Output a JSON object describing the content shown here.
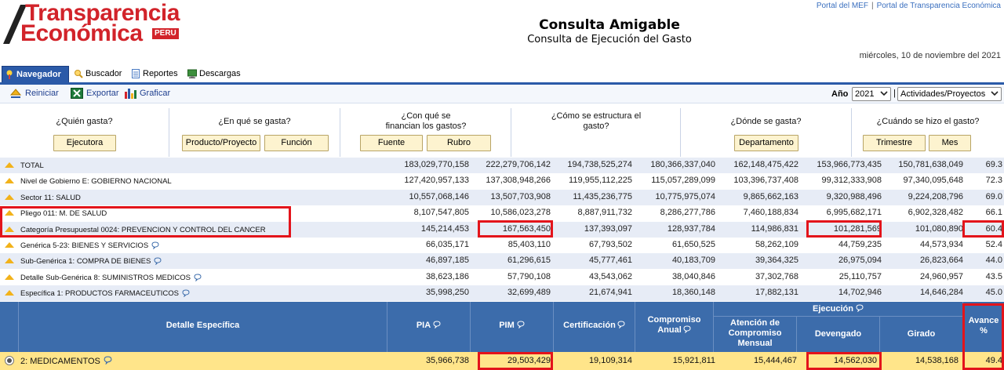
{
  "header": {
    "logo_line1": "Transparencia",
    "logo_line2": "Económica",
    "logo_badge": "PERU",
    "links": [
      "Portal del MEF",
      "Portal de Transparencia Económica"
    ],
    "link_separator": "|",
    "title": "Consulta Amigable",
    "subtitle": "Consulta de Ejecución del Gasto",
    "date": "miércoles, 10 de noviembre del 2021"
  },
  "tabs": [
    "Navegador",
    "Buscador",
    "Reportes",
    "Descargas"
  ],
  "toolbar": {
    "reset": "Reiniciar",
    "export": "Exportar",
    "chart": "Graficar",
    "year_label": "Año",
    "year_value": "2021",
    "mode_separator": "|",
    "mode_value": "Actividades/Proyectos"
  },
  "questions": [
    {
      "q": "¿Quién gasta?",
      "buttons": [
        "Ejecutora"
      ]
    },
    {
      "q": "¿En qué se gasta?",
      "buttons": [
        "Producto/Proyecto",
        "Función"
      ]
    },
    {
      "q": "¿Con qué se financian los gastos?",
      "buttons": [
        "Fuente",
        "Rubro"
      ]
    },
    {
      "q": "¿Cómo se estructura el gasto?",
      "buttons": []
    },
    {
      "q": "¿Dónde se gasta?",
      "buttons": [
        "Departamento"
      ]
    },
    {
      "q": "¿Cuándo se hizo el gasto?",
      "buttons": [
        "Trimestre",
        "Mes"
      ]
    }
  ],
  "rows": [
    {
      "label": "TOTAL",
      "hint": false,
      "v": [
        "183,029,770,158",
        "222,279,706,142",
        "194,738,525,274",
        "180,366,337,040",
        "162,148,475,422",
        "153,966,773,435",
        "150,781,638,049",
        "69.3"
      ]
    },
    {
      "label": "Nivel de Gobierno E: GOBIERNO NACIONAL",
      "hint": false,
      "v": [
        "127,420,957,133",
        "137,308,948,266",
        "119,955,112,225",
        "115,057,289,099",
        "103,396,737,408",
        "99,312,333,908",
        "97,340,095,648",
        "72.3"
      ]
    },
    {
      "label": "Sector 11: SALUD",
      "hint": false,
      "v": [
        "10,557,068,146",
        "13,507,703,908",
        "11,435,236,775",
        "10,775,975,074",
        "9,865,662,163",
        "9,320,988,496",
        "9,224,208,796",
        "69.0"
      ]
    },
    {
      "label": "Pliego 011: M. DE SALUD",
      "hint": false,
      "v": [
        "8,107,547,805",
        "10,586,023,278",
        "8,887,911,732",
        "8,286,277,786",
        "7,460,188,834",
        "6,995,682,171",
        "6,902,328,482",
        "66.1"
      ]
    },
    {
      "label": "Categoría Presupuestal 0024: PREVENCION Y CONTROL DEL CANCER",
      "hint": false,
      "v": [
        "145,214,453",
        "167,563,450",
        "137,393,097",
        "128,937,784",
        "114,986,831",
        "101,281,569",
        "101,080,890",
        "60.4"
      ]
    },
    {
      "label": "Genérica 5-23: BIENES Y SERVICIOS",
      "hint": true,
      "v": [
        "66,035,171",
        "85,403,110",
        "67,793,502",
        "61,650,525",
        "58,262,109",
        "44,759,235",
        "44,573,934",
        "52.4"
      ]
    },
    {
      "label": "Sub-Genérica 1: COMPRA DE BIENES",
      "hint": true,
      "v": [
        "46,897,185",
        "61,296,615",
        "45,777,461",
        "40,183,709",
        "39,364,325",
        "26,975,094",
        "26,823,664",
        "44.0"
      ]
    },
    {
      "label": "Detalle Sub-Genérica 8: SUMINISTROS MEDICOS",
      "hint": true,
      "v": [
        "38,623,186",
        "57,790,108",
        "43,543,062",
        "38,040,846",
        "37,302,768",
        "25,110,757",
        "24,960,957",
        "43.5"
      ]
    },
    {
      "label": "Específica 1: PRODUCTOS FARMACEUTICOS",
      "hint": true,
      "v": [
        "35,998,250",
        "32,699,489",
        "21,674,941",
        "18,360,148",
        "17,882,131",
        "14,702,946",
        "14,646,284",
        "45.0"
      ]
    }
  ],
  "detail_header": {
    "detail": "Detalle Específica",
    "pia": "PIA",
    "pim": "PIM",
    "cert": "Certificación",
    "comp_line1": "Compromiso",
    "comp_line2": "Anual",
    "ejecucion": "Ejecución",
    "aten_line1": "Atención de",
    "aten_line2": "Compromiso",
    "aten_line3": "Mensual",
    "devengado": "Devengado",
    "girado": "Girado",
    "avance_line1": "Avance",
    "avance_line2": "%"
  },
  "detail_row": {
    "label": "2: MEDICAMENTOS",
    "v": [
      "35,966,738",
      "29,503,429",
      "19,109,314",
      "15,921,811",
      "15,444,467",
      "14,562,030",
      "14,538,168",
      "49.4"
    ]
  },
  "colors": {
    "accent": "#3c6cab",
    "highlight": "#e3141b",
    "row_selected": "#ffe58a",
    "button": "#fdf3cf"
  }
}
